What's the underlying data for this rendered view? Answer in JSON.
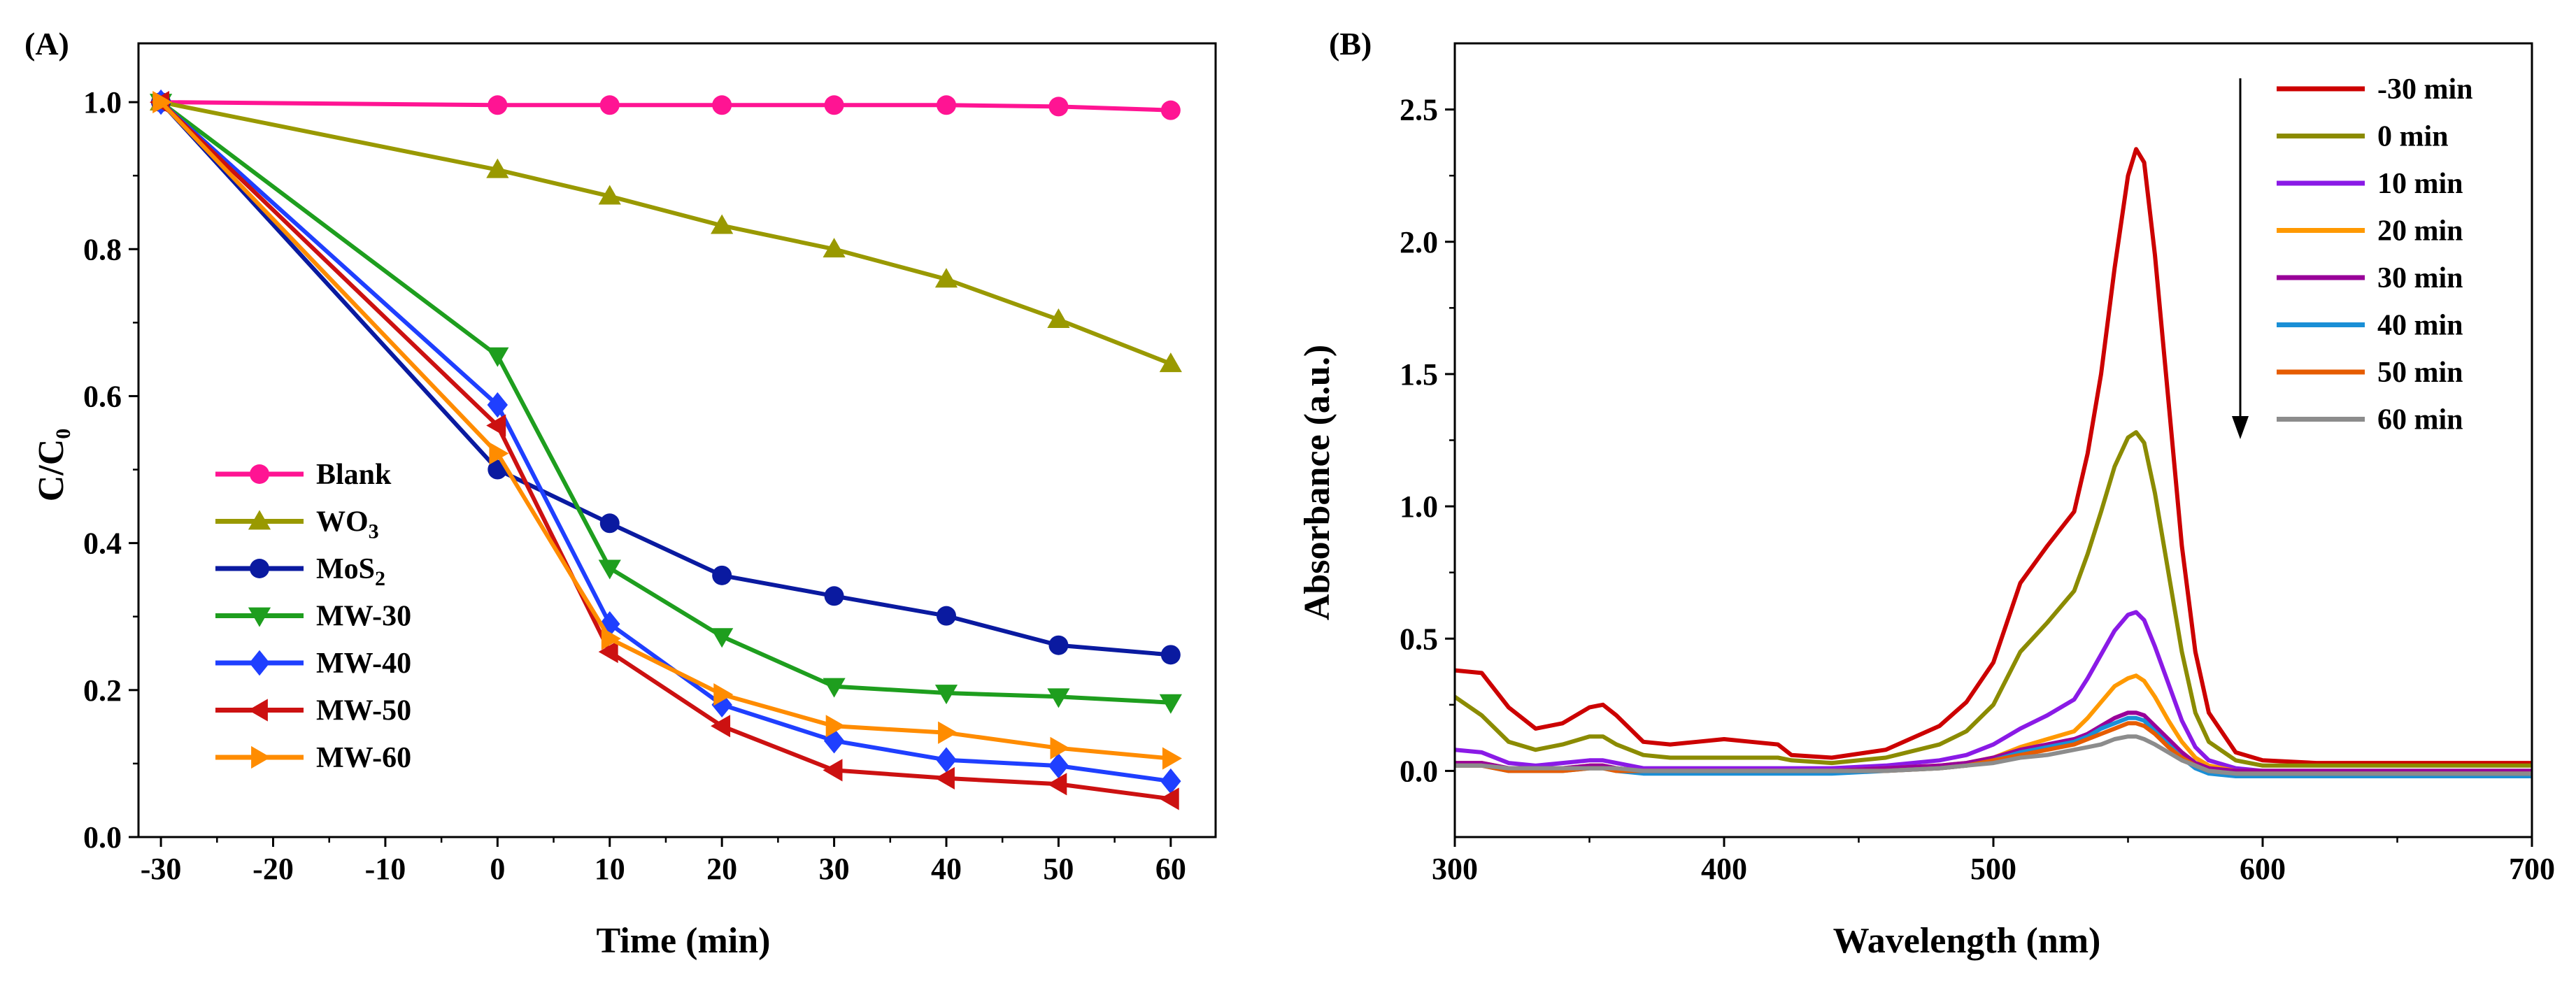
{
  "chart_data": [
    {
      "panel": "(A)",
      "type": "line",
      "xlabel": "Time (min)",
      "ylabel": "C/C",
      "ylabel_subscript": "0",
      "xlim": [
        -32,
        64
      ],
      "ylim": [
        0,
        1.08
      ],
      "xticks": [
        -30,
        -20,
        -10,
        0,
        10,
        20,
        30,
        40,
        50,
        60
      ],
      "yticks": [
        0.0,
        0.2,
        0.4,
        0.6,
        0.8,
        1.0
      ],
      "ytick_labels": [
        "0.0",
        "0.2",
        "0.4",
        "0.6",
        "0.8",
        "1.0"
      ],
      "x": [
        -30,
        0,
        10,
        20,
        30,
        40,
        50,
        60
      ],
      "legend_position": "center-left",
      "series": [
        {
          "name": "Blank",
          "sub": "",
          "color": "#ff1493",
          "marker": "circle",
          "values": [
            1.0,
            0.996,
            0.996,
            0.996,
            0.996,
            0.996,
            0.994,
            0.989
          ]
        },
        {
          "name": "WO",
          "sub": "3",
          "color": "#999900",
          "marker": "triangle-up",
          "values": [
            1.0,
            0.908,
            0.872,
            0.832,
            0.8,
            0.759,
            0.704,
            0.644
          ]
        },
        {
          "name": "MoS",
          "sub": "2",
          "color": "#0a1aa0",
          "marker": "circle",
          "values": [
            1.0,
            0.5,
            0.427,
            0.356,
            0.328,
            0.301,
            0.261,
            0.248
          ]
        },
        {
          "name": "MW-30",
          "sub": "",
          "color": "#1e9e1e",
          "marker": "triangle-down",
          "values": [
            1.0,
            0.655,
            0.366,
            0.273,
            0.205,
            0.196,
            0.191,
            0.183
          ]
        },
        {
          "name": "MW-40",
          "sub": "",
          "color": "#1f3fff",
          "marker": "diamond",
          "values": [
            1.0,
            0.588,
            0.29,
            0.18,
            0.131,
            0.105,
            0.097,
            0.076
          ]
        },
        {
          "name": "MW-50",
          "sub": "",
          "color": "#cc1111",
          "marker": "triangle-left",
          "values": [
            1.0,
            0.56,
            0.252,
            0.151,
            0.091,
            0.08,
            0.072,
            0.052
          ]
        },
        {
          "name": "MW-60",
          "sub": "",
          "color": "#ff8c00",
          "marker": "triangle-right",
          "values": [
            1.0,
            0.522,
            0.27,
            0.194,
            0.151,
            0.142,
            0.121,
            0.107
          ]
        }
      ]
    },
    {
      "panel": "(B)",
      "type": "line",
      "xlabel": "Wavelength (nm)",
      "ylabel": "Absorbance (a.u.)",
      "xlim": [
        300,
        700
      ],
      "ylim": [
        -0.25,
        2.75
      ],
      "xticks": [
        300,
        400,
        500,
        600,
        700
      ],
      "yticks": [
        0.0,
        0.5,
        1.0,
        1.5,
        2.0,
        2.5
      ],
      "ytick_labels": [
        "0.0",
        "0.5",
        "1.0",
        "1.5",
        "2.0",
        "2.5"
      ],
      "x": [
        300,
        310,
        320,
        330,
        340,
        350,
        355,
        360,
        370,
        380,
        390,
        400,
        410,
        420,
        425,
        440,
        460,
        480,
        490,
        500,
        510,
        520,
        530,
        535,
        540,
        545,
        550,
        553,
        556,
        560,
        565,
        570,
        575,
        580,
        590,
        600,
        620,
        650,
        700
      ],
      "legend_position": "top-right",
      "annotation": "downward arrow indicating decreasing absorbance with time",
      "series": [
        {
          "name": "-30 min",
          "color": "#cc0000",
          "values": [
            0.38,
            0.37,
            0.24,
            0.16,
            0.18,
            0.24,
            0.25,
            0.21,
            0.11,
            0.1,
            0.11,
            0.12,
            0.11,
            0.1,
            0.06,
            0.05,
            0.08,
            0.17,
            0.26,
            0.41,
            0.71,
            0.85,
            0.98,
            1.2,
            1.5,
            1.9,
            2.25,
            2.35,
            2.3,
            1.95,
            1.4,
            0.85,
            0.45,
            0.22,
            0.07,
            0.04,
            0.03,
            0.03,
            0.03
          ]
        },
        {
          "name": "0 min",
          "color": "#8b8b00",
          "values": [
            0.28,
            0.21,
            0.11,
            0.08,
            0.1,
            0.13,
            0.13,
            0.1,
            0.06,
            0.05,
            0.05,
            0.05,
            0.05,
            0.05,
            0.04,
            0.03,
            0.05,
            0.1,
            0.15,
            0.25,
            0.45,
            0.56,
            0.68,
            0.82,
            0.98,
            1.15,
            1.26,
            1.28,
            1.24,
            1.05,
            0.75,
            0.45,
            0.22,
            0.11,
            0.04,
            0.02,
            0.02,
            0.02,
            0.02
          ]
        },
        {
          "name": "10 min",
          "color": "#8a1ae6",
          "values": [
            0.08,
            0.07,
            0.03,
            0.02,
            0.03,
            0.04,
            0.04,
            0.03,
            0.01,
            0.01,
            0.01,
            0.01,
            0.01,
            0.01,
            0.01,
            0.01,
            0.02,
            0.04,
            0.06,
            0.1,
            0.16,
            0.21,
            0.27,
            0.35,
            0.44,
            0.53,
            0.59,
            0.6,
            0.57,
            0.47,
            0.33,
            0.19,
            0.09,
            0.04,
            0.01,
            0.0,
            0.0,
            0.0,
            0.0
          ]
        },
        {
          "name": "20 min",
          "color": "#ff9900",
          "values": [
            0.03,
            0.03,
            0.01,
            0.01,
            0.01,
            0.02,
            0.02,
            0.01,
            0.0,
            0.0,
            0.0,
            0.0,
            0.0,
            0.0,
            0.0,
            0.0,
            0.01,
            0.02,
            0.03,
            0.05,
            0.09,
            0.12,
            0.15,
            0.2,
            0.26,
            0.32,
            0.35,
            0.36,
            0.34,
            0.28,
            0.19,
            0.11,
            0.05,
            0.02,
            0.0,
            0.0,
            0.0,
            0.0,
            0.0
          ]
        },
        {
          "name": "30 min",
          "color": "#990099",
          "values": [
            0.03,
            0.03,
            0.01,
            0.01,
            0.01,
            0.02,
            0.02,
            0.01,
            0.0,
            0.0,
            0.0,
            0.0,
            0.0,
            0.0,
            0.0,
            0.0,
            0.01,
            0.02,
            0.03,
            0.05,
            0.08,
            0.1,
            0.12,
            0.14,
            0.17,
            0.2,
            0.22,
            0.22,
            0.21,
            0.17,
            0.12,
            0.07,
            0.03,
            0.01,
            0.0,
            0.0,
            0.0,
            0.0,
            0.0
          ]
        },
        {
          "name": "40 min",
          "color": "#1a8fd6",
          "values": [
            0.02,
            0.02,
            0.0,
            0.0,
            0.0,
            0.01,
            0.01,
            0.0,
            -0.01,
            -0.01,
            -0.01,
            -0.01,
            -0.01,
            -0.01,
            -0.01,
            -0.01,
            0.0,
            0.01,
            0.02,
            0.04,
            0.07,
            0.09,
            0.11,
            0.13,
            0.16,
            0.18,
            0.2,
            0.2,
            0.19,
            0.15,
            0.1,
            0.05,
            0.01,
            -0.01,
            -0.02,
            -0.02,
            -0.02,
            -0.02,
            -0.02
          ]
        },
        {
          "name": "50 min",
          "color": "#e65c00",
          "values": [
            0.02,
            0.02,
            0.0,
            0.0,
            0.0,
            0.01,
            0.01,
            0.0,
            0.0,
            0.0,
            0.0,
            0.0,
            0.0,
            0.0,
            0.0,
            0.0,
            0.0,
            0.01,
            0.02,
            0.04,
            0.06,
            0.08,
            0.1,
            0.12,
            0.14,
            0.16,
            0.18,
            0.18,
            0.17,
            0.14,
            0.09,
            0.05,
            0.02,
            0.0,
            -0.01,
            -0.01,
            -0.01,
            -0.01,
            -0.01
          ]
        },
        {
          "name": "60 min",
          "color": "#8c8c8c",
          "values": [
            0.02,
            0.02,
            0.01,
            0.01,
            0.01,
            0.01,
            0.01,
            0.01,
            0.0,
            0.0,
            0.0,
            0.0,
            0.0,
            0.0,
            0.0,
            0.0,
            0.0,
            0.01,
            0.02,
            0.03,
            0.05,
            0.06,
            0.08,
            0.09,
            0.1,
            0.12,
            0.13,
            0.13,
            0.12,
            0.1,
            0.07,
            0.04,
            0.02,
            0.0,
            -0.01,
            -0.01,
            -0.01,
            -0.01,
            -0.01
          ]
        }
      ]
    }
  ]
}
